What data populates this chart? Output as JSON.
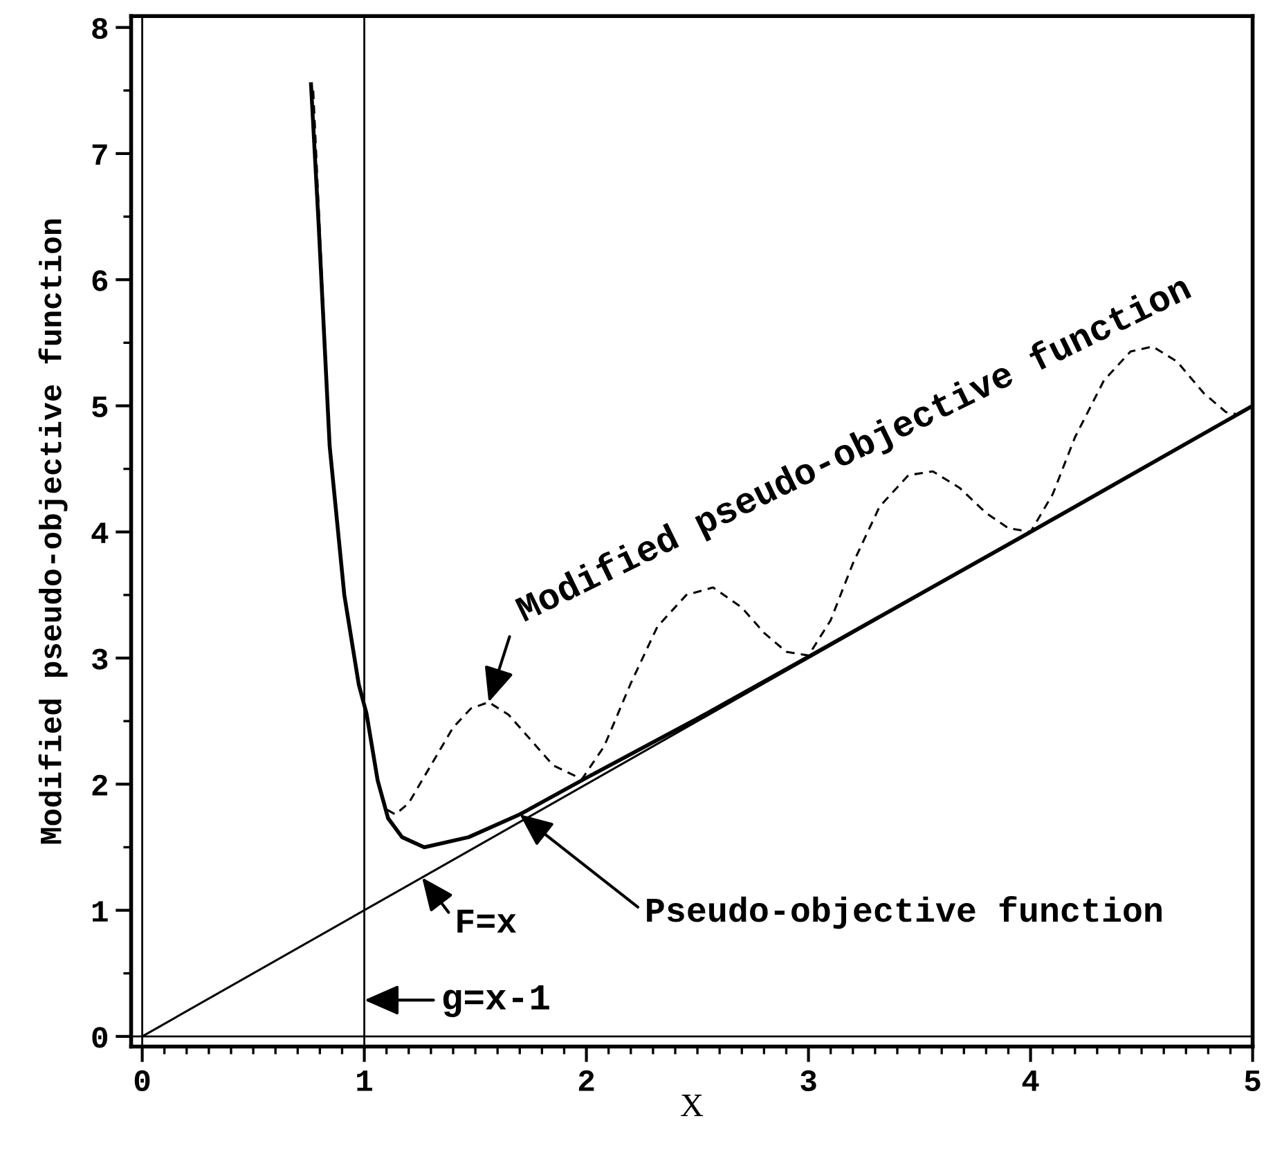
{
  "chart_data": {
    "type": "line",
    "xlabel": "X",
    "ylabel": "Modified pseudo-objective function",
    "xlim": [
      -0.05,
      5.0
    ],
    "ylim": [
      -0.08,
      8.09
    ],
    "xticks": [
      0,
      {
        "value": 0.1,
        "label": null
      },
      {
        "value": 0.2,
        "label": null
      },
      {
        "value": 0.3,
        "label": null
      },
      {
        "value": 0.4,
        "label": null
      },
      {
        "value": 0.5,
        "label": null
      },
      {
        "value": 0.6,
        "label": null
      },
      {
        "value": 0.7,
        "label": null
      },
      {
        "value": 0.8,
        "label": null
      },
      {
        "value": 0.9,
        "label": null
      },
      1,
      {
        "value": 1.1,
        "label": null
      },
      {
        "value": 1.2,
        "label": null
      },
      {
        "value": 1.3,
        "label": null
      },
      {
        "value": 1.4,
        "label": null
      },
      {
        "value": 1.5,
        "label": null
      },
      {
        "value": 1.6,
        "label": null
      },
      {
        "value": 1.7,
        "label": null
      },
      {
        "value": 1.8,
        "label": null
      },
      {
        "value": 1.9,
        "label": null
      },
      2,
      {
        "value": 2.1,
        "label": null
      },
      {
        "value": 2.2,
        "label": null
      },
      {
        "value": 2.3,
        "label": null
      },
      {
        "value": 2.4,
        "label": null
      },
      {
        "value": 2.5,
        "label": null
      },
      {
        "value": 2.6,
        "label": null
      },
      {
        "value": 2.7,
        "label": null
      },
      {
        "value": 2.8,
        "label": null
      },
      {
        "value": 2.9,
        "label": null
      },
      3,
      {
        "value": 3.1,
        "label": null
      },
      {
        "value": 3.2,
        "label": null
      },
      {
        "value": 3.3,
        "label": null
      },
      {
        "value": 3.4,
        "label": null
      },
      {
        "value": 3.5,
        "label": null
      },
      {
        "value": 3.6,
        "label": null
      },
      {
        "value": 3.7,
        "label": null
      },
      {
        "value": 3.8,
        "label": null
      },
      {
        "value": 3.9,
        "label": null
      },
      4,
      {
        "value": 4.1,
        "label": null
      },
      {
        "value": 4.2,
        "label": null
      },
      {
        "value": 4.3,
        "label": null
      },
      {
        "value": 4.4,
        "label": null
      },
      {
        "value": 4.5,
        "label": null
      },
      {
        "value": 4.6,
        "label": null
      },
      {
        "value": 4.7,
        "label": null
      },
      {
        "value": 4.8,
        "label": null
      },
      {
        "value": 4.9,
        "label": null
      },
      5
    ],
    "yticks": [
      0,
      {
        "value": 0.5,
        "label": null
      },
      1,
      {
        "value": 1.5,
        "label": null
      },
      2,
      {
        "value": 2.5,
        "label": null
      },
      3,
      {
        "value": 3.5,
        "label": null
      },
      4,
      {
        "value": 4.5,
        "label": null
      },
      5,
      {
        "value": 5.5,
        "label": null
      },
      6,
      {
        "value": 6.5,
        "label": null
      },
      7,
      {
        "value": 7.5,
        "label": null
      },
      8
    ],
    "grid": false,
    "legend": false,
    "marker": "none",
    "series": [
      {
        "color": "#000000",
        "line_style": "solid",
        "x": [
          0,
          5
        ],
        "values": [
          0,
          5
        ]
      },
      {
        "color": "#000000",
        "line_style": "solid",
        "x": [
          0.76,
          0.794,
          0.844,
          0.91,
          0.975,
          1.01,
          1.06,
          1.107,
          1.17,
          1.27,
          1.47,
          1.7,
          2.0,
          2.5,
          3.0,
          4.0,
          5.0
        ],
        "values": [
          7.55,
          6.45,
          4.68,
          3.5,
          2.79,
          2.56,
          2.03,
          1.73,
          1.58,
          1.5,
          1.58,
          1.76,
          2.05,
          2.52,
          3.01,
          4.0,
          5.0
        ]
      },
      {
        "color": "#000000",
        "line_style": "dashed",
        "x": [
          0.77,
          0.844,
          0.91,
          0.975,
          1.01,
          1.06,
          1.1,
          1.14,
          1.2,
          1.3,
          1.4,
          1.48,
          1.56,
          1.65,
          1.75,
          1.85,
          1.98,
          2.08,
          2.2,
          2.32,
          2.45,
          2.57,
          2.7,
          2.8,
          2.9,
          3.0,
          3.1,
          3.2,
          3.32,
          3.45,
          3.56,
          3.68,
          3.8,
          3.9,
          4.0,
          4.1,
          4.2,
          4.33,
          4.45,
          4.55,
          4.66,
          4.78,
          4.88,
          4.94
        ],
        "values": [
          7.5,
          4.7,
          3.5,
          2.8,
          2.56,
          2.03,
          1.8,
          1.76,
          1.85,
          2.15,
          2.45,
          2.6,
          2.65,
          2.55,
          2.35,
          2.15,
          2.04,
          2.3,
          2.8,
          3.25,
          3.5,
          3.56,
          3.4,
          3.2,
          3.05,
          3.02,
          3.3,
          3.75,
          4.2,
          4.45,
          4.48,
          4.35,
          4.15,
          4.03,
          4.0,
          4.3,
          4.75,
          5.2,
          5.43,
          5.47,
          5.35,
          5.1,
          4.95,
          4.93
        ]
      }
    ],
    "ref_lines": [
      {
        "axis": "x",
        "value": 0
      },
      {
        "axis": "x",
        "value": 1,
        "label": "g=x-1"
      },
      {
        "axis": "y",
        "value": 0
      }
    ],
    "annotations": [
      {
        "text": "Modified pseudo-objective function",
        "x": 1.56,
        "y": 2.65
      },
      {
        "text": "Pseudo-objective function",
        "x": 1.7,
        "y": 1.76
      },
      {
        "text": "F=x",
        "x": 1.26,
        "y": 1.26
      }
    ]
  }
}
